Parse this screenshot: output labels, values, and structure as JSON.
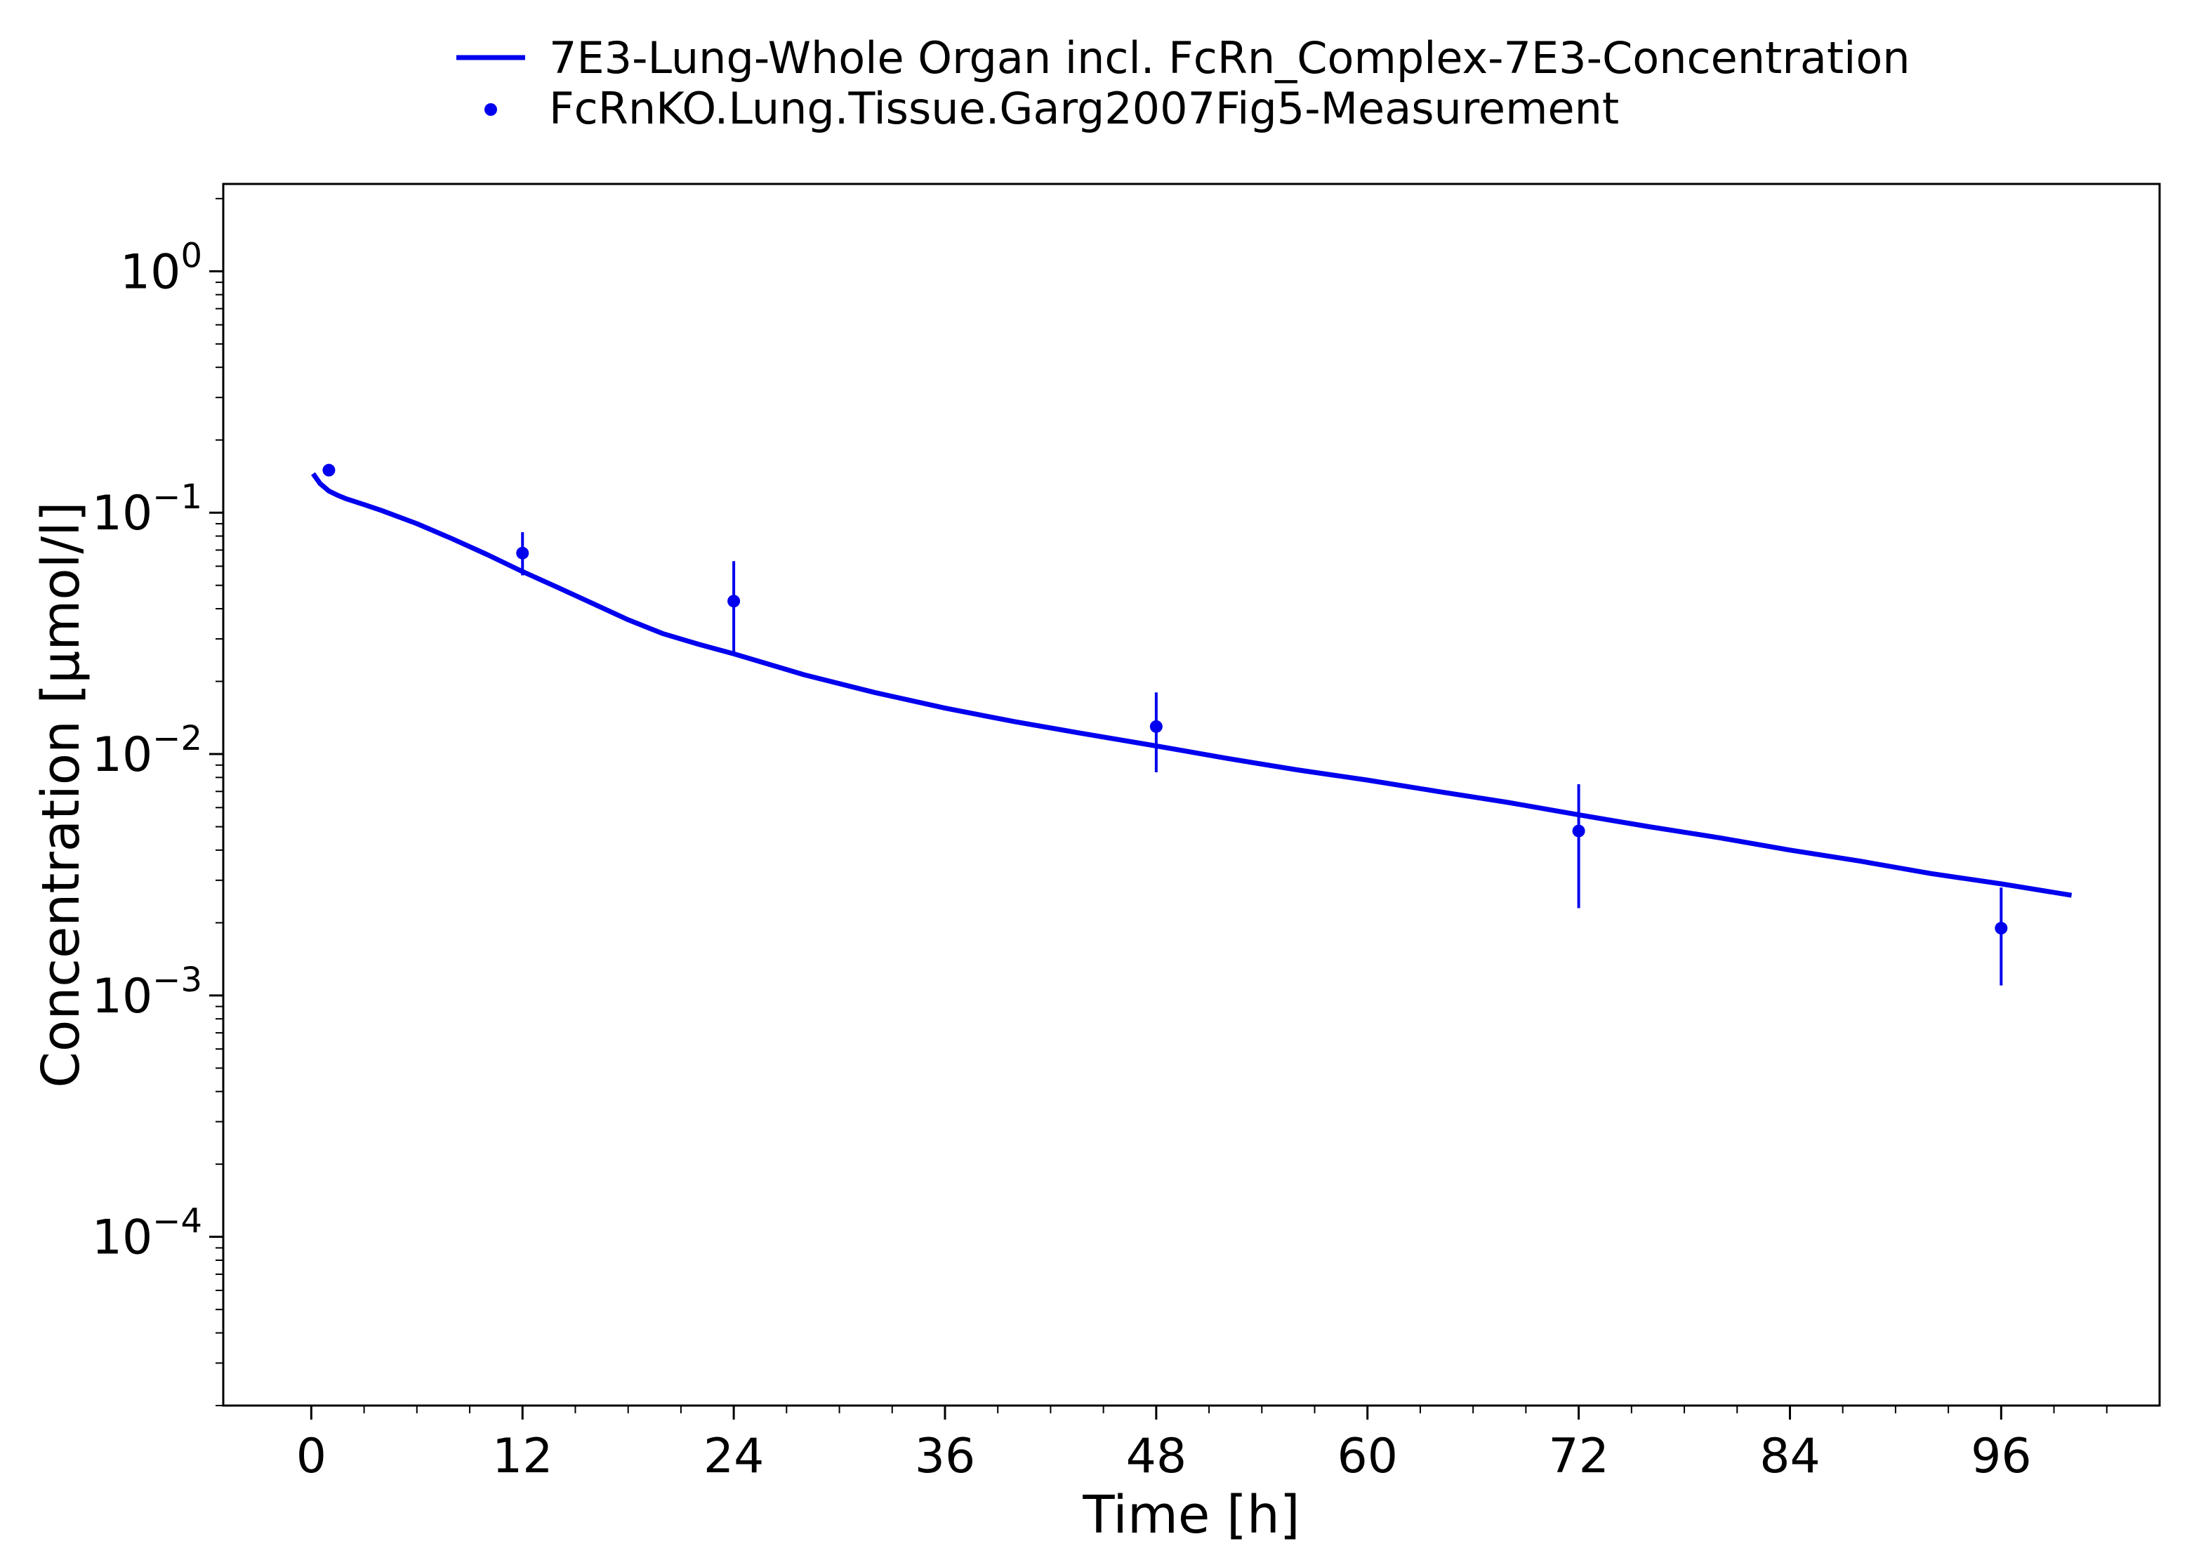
{
  "chart_data": {
    "type": "line",
    "title": "",
    "xlabel": "Time [h]",
    "ylabel": "Concentration [µmol/l]",
    "xscale": "linear",
    "yscale": "log",
    "xlim": [
      -5,
      105
    ],
    "ylim": [
      2e-05,
      2.3
    ],
    "xticks": [
      0,
      12,
      24,
      36,
      48,
      60,
      72,
      84,
      96
    ],
    "xtick_labels": [
      "0",
      "12",
      "24",
      "36",
      "48",
      "60",
      "72",
      "84",
      "96"
    ],
    "yticks": [
      1,
      0.1,
      0.01,
      0.001,
      0.0001
    ],
    "ytick_labels": [
      {
        "base": "10",
        "exp": "0"
      },
      {
        "base": "10",
        "exp": "−1"
      },
      {
        "base": "10",
        "exp": "−2"
      },
      {
        "base": "10",
        "exp": "−3"
      },
      {
        "base": "10",
        "exp": "−4"
      }
    ],
    "grid": false,
    "legend_position": "top-center",
    "series": [
      {
        "name": "7E3-Lung-Whole Organ incl. FcRn_Complex-7E3-Concentration",
        "kind": "line",
        "color": "#0000ee",
        "x": [
          0.1,
          0.5,
          1,
          1.5,
          2,
          3,
          4,
          6,
          8,
          10,
          12,
          14,
          16,
          18,
          20,
          22,
          24,
          28,
          32,
          36,
          40,
          44,
          48,
          52,
          56,
          60,
          64,
          68,
          72,
          76,
          80,
          84,
          88,
          92,
          96,
          100
        ],
        "y": [
          0.145,
          0.132,
          0.123,
          0.118,
          0.114,
          0.108,
          0.102,
          0.09,
          0.078,
          0.067,
          0.057,
          0.049,
          0.042,
          0.036,
          0.0315,
          0.0285,
          0.026,
          0.0213,
          0.018,
          0.0155,
          0.0136,
          0.0121,
          0.0108,
          0.0096,
          0.0086,
          0.0078,
          0.007,
          0.0063,
          0.0056,
          0.005,
          0.0045,
          0.004,
          0.0036,
          0.0032,
          0.0029,
          0.0026
        ]
      },
      {
        "name": "FcRnKO.Lung.Tissue.Garg2007Fig5-Measurement",
        "kind": "scatter",
        "color": "#0000ee",
        "x": [
          1,
          12,
          24,
          48,
          72,
          96
        ],
        "y": [
          0.15,
          0.068,
          0.043,
          0.013,
          0.0048,
          0.0019
        ],
        "err_low": [
          0.15,
          0.055,
          0.026,
          0.0084,
          0.0023,
          0.0011
        ],
        "err_high": [
          0.15,
          0.083,
          0.063,
          0.018,
          0.0075,
          0.0028
        ]
      }
    ]
  }
}
